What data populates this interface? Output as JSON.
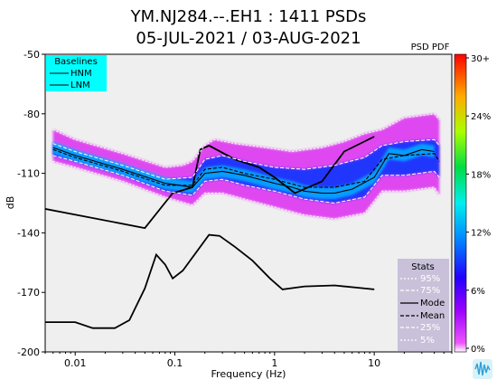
{
  "title_line1": "YM.NJ284.--.EH1 : 1411 PSDs",
  "title_line2": "05-JUL-2021 / 03-AUG-2021",
  "colorbar_label": "PSD PDF",
  "colorbar_ticks": [
    "30+",
    "24%",
    "18%",
    "12%",
    "6%",
    "0%"
  ],
  "baselines": {
    "title": "Baselines",
    "items": [
      "HNM",
      "LNM"
    ]
  },
  "stats": {
    "title": "Stats",
    "items": [
      "95%",
      "75%",
      "Mode",
      "Mean",
      "25%",
      "5%"
    ]
  },
  "colors": {
    "baseline_legend_bg": "#00ffff",
    "stats_legend_bg": "#c9c1d9",
    "plot_bg": "#efefef",
    "pdf_low": "#d90ff0",
    "pdf_high": "#0033ff"
  },
  "chart_data": {
    "type": "heatmap",
    "title": "YM.NJ284.--.EH1 : 1411 PSDs",
    "subtitle": "05-JUL-2021 / 03-AUG-2021",
    "xlabel": "Frequency (Hz)",
    "ylabel": "dB",
    "xscale": "log",
    "xlim": [
      0.005,
      60
    ],
    "ylim": [
      -200,
      -50
    ],
    "x_ticks": [
      {
        "value": 0.01,
        "label": "0.01"
      },
      {
        "value": 0.1,
        "label": "0.1"
      },
      {
        "value": 1,
        "label": "1"
      },
      {
        "value": 10,
        "label": "10"
      }
    ],
    "y_ticks": [
      {
        "value": -50,
        "label": "-50"
      },
      {
        "value": -80,
        "label": "-80"
      },
      {
        "value": -110,
        "label": "-110"
      },
      {
        "value": -140,
        "label": "-140"
      },
      {
        "value": -170,
        "label": "-170"
      },
      {
        "value": -200,
        "label": "-200"
      }
    ],
    "series": [
      {
        "name": "HNM",
        "points": [
          [
            0.005,
            -127.9
          ],
          [
            0.05,
            -137.6
          ],
          [
            0.095,
            -120
          ],
          [
            0.15,
            -117
          ],
          [
            0.18,
            -98
          ],
          [
            0.22,
            -96
          ],
          [
            0.4,
            -103
          ],
          [
            0.7,
            -107
          ],
          [
            1.0,
            -112
          ],
          [
            1.6,
            -120
          ],
          [
            3.0,
            -114
          ],
          [
            5.0,
            -99
          ],
          [
            10.0,
            -91.5
          ]
        ]
      },
      {
        "name": "LNM",
        "points": [
          [
            0.005,
            -185
          ],
          [
            0.01,
            -185
          ],
          [
            0.015,
            -188
          ],
          [
            0.025,
            -188
          ],
          [
            0.035,
            -184
          ],
          [
            0.05,
            -168
          ],
          [
            0.065,
            -151
          ],
          [
            0.08,
            -156
          ],
          [
            0.095,
            -163
          ],
          [
            0.12,
            -159
          ],
          [
            0.22,
            -141
          ],
          [
            0.28,
            -141.5
          ],
          [
            0.4,
            -147
          ],
          [
            0.6,
            -154
          ],
          [
            0.9,
            -163
          ],
          [
            1.2,
            -168.5
          ],
          [
            2.0,
            -167
          ],
          [
            4.0,
            -166.5
          ],
          [
            10.0,
            -168.5
          ]
        ]
      },
      {
        "name": "95%",
        "points": [
          [
            0.006,
            -88
          ],
          [
            0.01,
            -93
          ],
          [
            0.03,
            -100
          ],
          [
            0.08,
            -107
          ],
          [
            0.12,
            -106
          ],
          [
            0.15,
            -104
          ],
          [
            0.2,
            -96
          ],
          [
            0.25,
            -93
          ],
          [
            0.4,
            -95
          ],
          [
            0.8,
            -97
          ],
          [
            1.5,
            -99
          ],
          [
            3.0,
            -97
          ],
          [
            5.0,
            -94
          ],
          [
            8.0,
            -90
          ],
          [
            12.0,
            -88
          ],
          [
            20.0,
            -82
          ],
          [
            40.0,
            -80
          ],
          [
            45.0,
            -83
          ]
        ]
      },
      {
        "name": "75%",
        "points": [
          [
            0.006,
            -95
          ],
          [
            0.01,
            -99
          ],
          [
            0.03,
            -106
          ],
          [
            0.08,
            -113
          ],
          [
            0.15,
            -112
          ],
          [
            0.2,
            -103
          ],
          [
            0.3,
            -101
          ],
          [
            0.5,
            -104
          ],
          [
            1.0,
            -107
          ],
          [
            2.0,
            -108
          ],
          [
            4.0,
            -106
          ],
          [
            8.0,
            -102
          ],
          [
            12.0,
            -96
          ],
          [
            20.0,
            -94
          ],
          [
            40.0,
            -93
          ],
          [
            45.0,
            -96
          ]
        ]
      },
      {
        "name": "Mode",
        "points": [
          [
            0.006,
            -97
          ],
          [
            0.01,
            -101
          ],
          [
            0.03,
            -108
          ],
          [
            0.08,
            -115
          ],
          [
            0.15,
            -117
          ],
          [
            0.2,
            -110
          ],
          [
            0.3,
            -109
          ],
          [
            0.5,
            -111
          ],
          [
            1.0,
            -115
          ],
          [
            1.5,
            -117
          ],
          [
            2.0,
            -119
          ],
          [
            3.0,
            -120
          ],
          [
            4.0,
            -120
          ],
          [
            6.0,
            -118
          ],
          [
            10.0,
            -112
          ],
          [
            14.0,
            -100
          ],
          [
            20.0,
            -101
          ],
          [
            30.0,
            -98
          ],
          [
            40.0,
            -99
          ]
        ]
      },
      {
        "name": "Mean",
        "points": [
          [
            0.006,
            -98
          ],
          [
            0.01,
            -102
          ],
          [
            0.03,
            -109
          ],
          [
            0.08,
            -116
          ],
          [
            0.15,
            -116
          ],
          [
            0.2,
            -108
          ],
          [
            0.3,
            -107
          ],
          [
            0.5,
            -110
          ],
          [
            1.0,
            -113
          ],
          [
            2.0,
            -117
          ],
          [
            4.0,
            -117
          ],
          [
            8.0,
            -114
          ],
          [
            12.0,
            -103
          ],
          [
            20.0,
            -101
          ],
          [
            40.0,
            -100
          ],
          [
            45.0,
            -104
          ]
        ]
      },
      {
        "name": "25%",
        "points": [
          [
            0.006,
            -101
          ],
          [
            0.01,
            -104
          ],
          [
            0.03,
            -111
          ],
          [
            0.08,
            -119
          ],
          [
            0.15,
            -121
          ],
          [
            0.2,
            -114
          ],
          [
            0.3,
            -113
          ],
          [
            0.5,
            -116
          ],
          [
            1.0,
            -119
          ],
          [
            2.0,
            -123
          ],
          [
            4.0,
            -125
          ],
          [
            8.0,
            -122
          ],
          [
            12.0,
            -111
          ],
          [
            20.0,
            -111
          ],
          [
            40.0,
            -109
          ],
          [
            45.0,
            -112
          ]
        ]
      },
      {
        "name": "5%",
        "points": [
          [
            0.006,
            -104
          ],
          [
            0.01,
            -107
          ],
          [
            0.03,
            -114
          ],
          [
            0.08,
            -122
          ],
          [
            0.15,
            -126
          ],
          [
            0.2,
            -120
          ],
          [
            0.3,
            -120
          ],
          [
            0.5,
            -123
          ],
          [
            1.0,
            -127
          ],
          [
            2.0,
            -131
          ],
          [
            4.0,
            -133
          ],
          [
            8.0,
            -130
          ],
          [
            12.0,
            -119
          ],
          [
            20.0,
            -119
          ],
          [
            40.0,
            -117
          ],
          [
            45.0,
            -121
          ]
        ]
      }
    ]
  }
}
